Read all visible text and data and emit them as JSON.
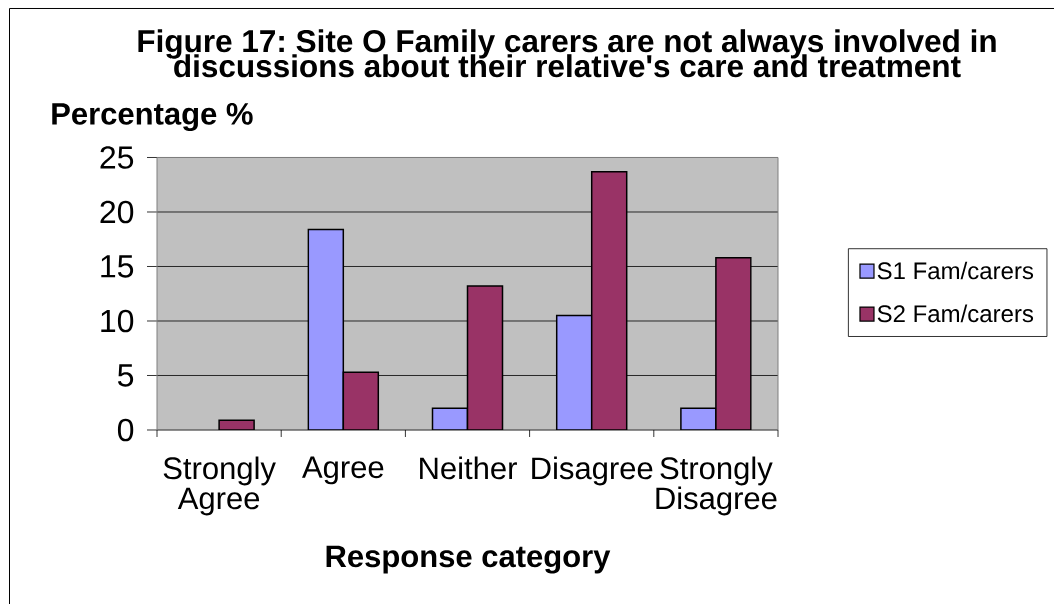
{
  "chart_data": {
    "type": "bar",
    "title": "Figure 17: Site O Family carers are not always involved in discussions about their relative's care and treatment",
    "xlabel": "Response category",
    "ylabel": "Percentage %",
    "categories": [
      "Strongly Agree",
      "Agree",
      "Neither",
      "Disagree",
      "Strongly Disagree"
    ],
    "series": [
      {
        "name": "S1 Fam/carers",
        "color": "#9999ff",
        "values": [
          null,
          18.4,
          2.0,
          10.5,
          2.0
        ]
      },
      {
        "name": "S2 Fam/carers",
        "color": "#993366",
        "values": [
          0.9,
          5.3,
          13.2,
          23.7,
          15.8
        ]
      }
    ],
    "ylim": [
      0,
      25
    ],
    "yticks": [
      0,
      5,
      10,
      15,
      20,
      25
    ],
    "grid": "y",
    "legend": "right"
  }
}
